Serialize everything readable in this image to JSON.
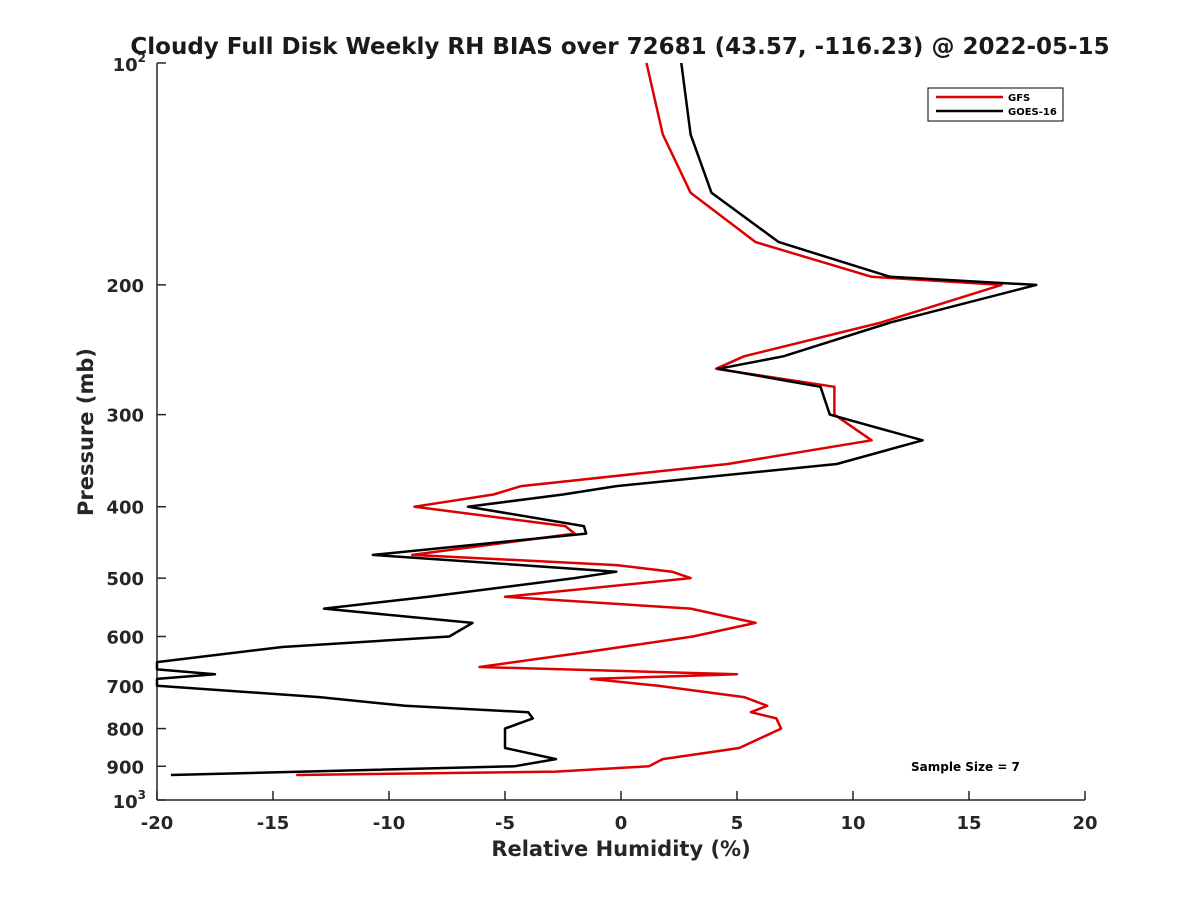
{
  "chart_data": {
    "type": "line",
    "title": "Cloudy Full Disk Weekly RH BIAS over 72681 (43.57, -116.23) @ 2022-05-15",
    "xlabel": "Relative Humidity (%)",
    "ylabel": "Pressure (mb)",
    "xlim": [
      -20,
      20
    ],
    "ylim": [
      100,
      1000
    ],
    "yscale": "log",
    "y_reversed": true,
    "grid": false,
    "legend_position": "top-right",
    "x_ticks": [
      "-20",
      "-15",
      "-10",
      "-5",
      "0",
      "5",
      "10",
      "15",
      "20"
    ],
    "y_ticks": [
      {
        "value": 100,
        "base": "10",
        "exp": "2"
      },
      {
        "value": 200,
        "label": "200"
      },
      {
        "value": 300,
        "label": "300"
      },
      {
        "value": 400,
        "label": "400"
      },
      {
        "value": 500,
        "label": "500"
      },
      {
        "value": 600,
        "label": "600"
      },
      {
        "value": 700,
        "label": "700"
      },
      {
        "value": 800,
        "label": "800"
      },
      {
        "value": 900,
        "label": "900"
      },
      {
        "value": 1000,
        "base": "10",
        "exp": "3"
      }
    ],
    "annotation": "Sample Size = 7",
    "series": [
      {
        "name": "GFS",
        "color": "#dd0000",
        "points": [
          [
            1.1,
            100
          ],
          [
            1.8,
            125
          ],
          [
            3.0,
            150
          ],
          [
            5.8,
            175
          ],
          [
            10.8,
            195
          ],
          [
            16.4,
            200
          ],
          [
            11.2,
            225
          ],
          [
            5.3,
            250
          ],
          [
            4.1,
            260
          ],
          [
            9.2,
            275
          ],
          [
            9.2,
            300
          ],
          [
            10.8,
            325
          ],
          [
            4.6,
            350
          ],
          [
            -4.3,
            375
          ],
          [
            -5.5,
            385
          ],
          [
            -8.9,
            400
          ],
          [
            -2.4,
            425
          ],
          [
            -2.0,
            435
          ],
          [
            -9.0,
            465
          ],
          [
            -0.2,
            480
          ],
          [
            2.2,
            490
          ],
          [
            3.0,
            500
          ],
          [
            -5.0,
            530
          ],
          [
            3.0,
            550
          ],
          [
            5.8,
            575
          ],
          [
            3.1,
            600
          ],
          [
            -1.5,
            630
          ],
          [
            -6.1,
            660
          ],
          [
            5.0,
            675
          ],
          [
            -1.3,
            685
          ],
          [
            1.6,
            700
          ],
          [
            5.3,
            725
          ],
          [
            6.3,
            745
          ],
          [
            5.6,
            760
          ],
          [
            6.7,
            775
          ],
          [
            6.9,
            800
          ],
          [
            5.1,
            850
          ],
          [
            1.8,
            880
          ],
          [
            1.2,
            900
          ],
          [
            -2.8,
            915
          ],
          [
            -14.0,
            925
          ]
        ]
      },
      {
        "name": "GOES-16",
        "color": "#000000",
        "points": [
          [
            2.6,
            100
          ],
          [
            3.0,
            125
          ],
          [
            3.9,
            150
          ],
          [
            6.8,
            175
          ],
          [
            11.6,
            195
          ],
          [
            17.9,
            200
          ],
          [
            11.6,
            225
          ],
          [
            7.0,
            250
          ],
          [
            4.2,
            260
          ],
          [
            8.6,
            275
          ],
          [
            9.0,
            300
          ],
          [
            13.0,
            325
          ],
          [
            9.3,
            350
          ],
          [
            -0.2,
            375
          ],
          [
            -2.5,
            385
          ],
          [
            -6.6,
            400
          ],
          [
            -1.6,
            425
          ],
          [
            -1.5,
            435
          ],
          [
            -10.7,
            465
          ],
          [
            -4.3,
            480
          ],
          [
            -0.2,
            490
          ],
          [
            -2.0,
            500
          ],
          [
            -8.3,
            530
          ],
          [
            -12.8,
            550
          ],
          [
            -6.4,
            575
          ],
          [
            -7.4,
            600
          ],
          [
            -14.6,
            620
          ],
          [
            -20.0,
            650
          ],
          [
            -20.0,
            665
          ],
          [
            -17.5,
            675
          ],
          [
            -20.0,
            685
          ],
          [
            -20.0,
            700
          ],
          [
            -13.0,
            725
          ],
          [
            -9.3,
            745
          ],
          [
            -4.0,
            760
          ],
          [
            -3.8,
            775
          ],
          [
            -5.0,
            800
          ],
          [
            -5.0,
            850
          ],
          [
            -2.8,
            880
          ],
          [
            -4.6,
            900
          ],
          [
            -19.4,
            925
          ]
        ]
      }
    ]
  }
}
